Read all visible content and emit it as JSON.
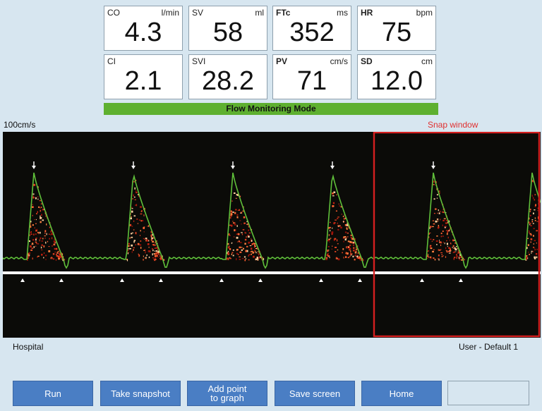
{
  "tiles": [
    {
      "label": "CO",
      "unit": "l/min",
      "value": "4.3",
      "bold": false
    },
    {
      "label": "SV",
      "unit": "ml",
      "value": "58",
      "bold": false
    },
    {
      "label": "FTc",
      "unit": "ms",
      "value": "352",
      "bold": true
    },
    {
      "label": "HR",
      "unit": "bpm",
      "value": "75",
      "bold": true
    },
    {
      "label": "CI",
      "unit": "",
      "value": "2.1",
      "bold": false
    },
    {
      "label": "SVI",
      "unit": "",
      "value": "28.2",
      "bold": false
    },
    {
      "label": "PV",
      "unit": "cm/s",
      "value": "71",
      "bold": true
    },
    {
      "label": "SD",
      "unit": "cm",
      "value": "12.0",
      "bold": true
    }
  ],
  "mode": "Flow Monitoring Mode",
  "scale_label": "100cm/s",
  "snap_label": "Snap window",
  "footer": {
    "left": "Hospital",
    "right": "User - Default 1"
  },
  "buttons": [
    "Run",
    "Take snapshot",
    "Add point\nto graph",
    "Save screen",
    "Home"
  ],
  "colors": {
    "trace": "#5fbf3a",
    "snap_border": "#d42020",
    "button": "#4a7ec4",
    "mode_bar": "#5eb030"
  }
}
